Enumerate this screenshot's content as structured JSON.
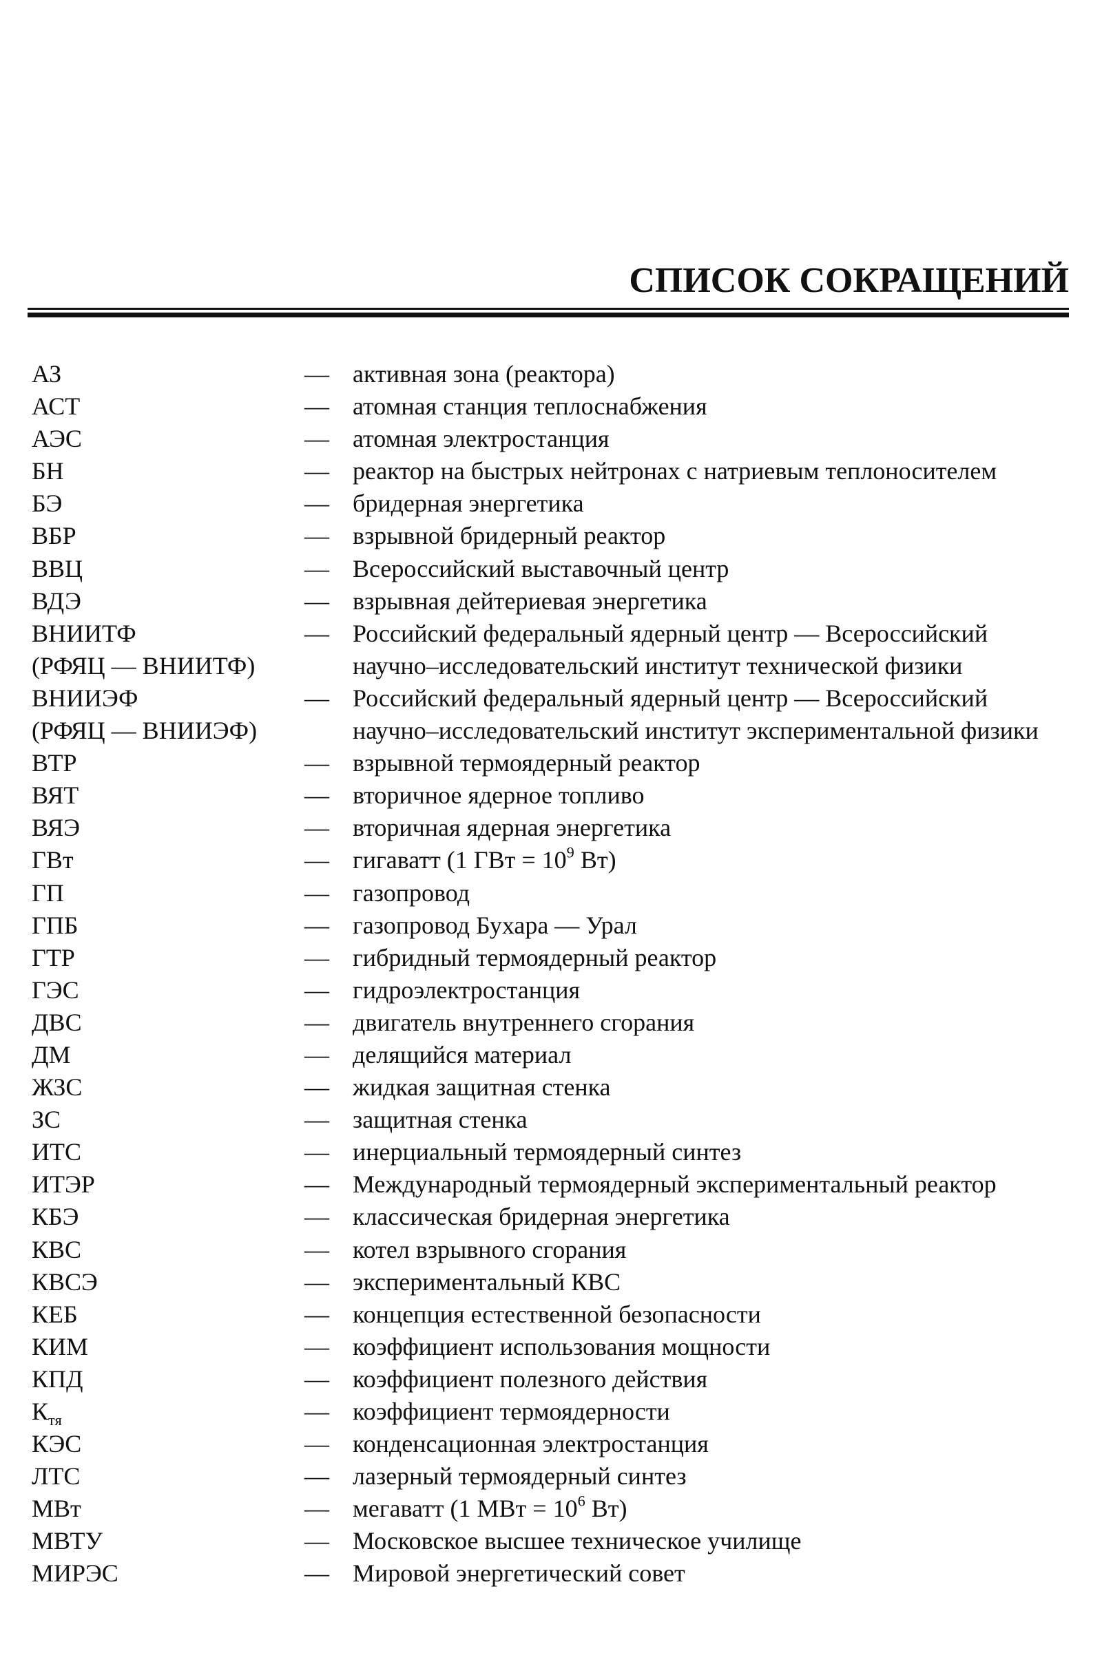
{
  "title": "СПИСОК СОКРАЩЕНИЙ",
  "dash": "—",
  "entries": [
    {
      "abbr": "АЗ",
      "desc": "активная зона (реактора)"
    },
    {
      "abbr": "АСТ",
      "desc": "атомная станция теплоснабжения"
    },
    {
      "abbr": "АЭС",
      "desc": "атомная электростанция"
    },
    {
      "abbr": "БН",
      "desc": "реактор на быстрых нейтронах с натриевым теплоносителем"
    },
    {
      "abbr": "БЭ",
      "desc": "бридерная энергетика"
    },
    {
      "abbr": "ВБР",
      "desc": "взрывной бридерный реактор"
    },
    {
      "abbr": "ВВЦ",
      "desc": "Всероссийский выставочный центр"
    },
    {
      "abbr": "ВДЭ",
      "desc": "взрывная дейтериевая энергетика"
    },
    {
      "abbr": "ВНИИТФ\n(РФЯЦ — ВНИИТФ)",
      "desc": "Российский федеральный ядерный центр — Всероссийский научно–исследовательский институт технической физики"
    },
    {
      "abbr": "ВНИИЭФ\n(РФЯЦ — ВНИИЭФ)",
      "desc": "Российский федеральный ядерный центр — Всероссийский научно–исследовательский институт экспериментальной физики"
    },
    {
      "abbr": "ВТР",
      "desc": "взрывной термоядерный реактор"
    },
    {
      "abbr": "ВЯТ",
      "desc": "вторичное ядерное топливо"
    },
    {
      "abbr": "ВЯЭ",
      "desc": "вторичная ядерная энергетика"
    },
    {
      "abbr": "ГВт",
      "desc": "гигаватт (1 ГВт = 10",
      "desc_sup": "9",
      "desc_tail": " Вт)"
    },
    {
      "abbr": "ГП",
      "desc": "газопровод"
    },
    {
      "abbr": "ГПБ",
      "desc": "газопровод Бухара — Урал"
    },
    {
      "abbr": "ГТР",
      "desc": "гибридный термоядерный реактор"
    },
    {
      "abbr": "ГЭС",
      "desc": "гидроэлектростанция"
    },
    {
      "abbr": "ДВС",
      "desc": "двигатель внутреннего сгорания"
    },
    {
      "abbr": "ДМ",
      "desc": "делящийся материал"
    },
    {
      "abbr": "ЖЗС",
      "desc": "жидкая защитная стенка"
    },
    {
      "abbr": "ЗС",
      "desc": "защитная стенка"
    },
    {
      "abbr": "ИТС",
      "desc": "инерциальный термоядерный синтез"
    },
    {
      "abbr": "ИТЭР",
      "desc": "Международный термоядерный экспериментальный реактор"
    },
    {
      "abbr": "КБЭ",
      "desc": "классическая бридерная энергетика"
    },
    {
      "abbr": "КВС",
      "desc": "котел взрывного сгорания"
    },
    {
      "abbr": "КВСЭ",
      "desc": "экспериментальный КВС"
    },
    {
      "abbr": "КЕБ",
      "desc": "концепция естественной безопасности"
    },
    {
      "abbr": "КИМ",
      "desc": "коэффициент использования мощности"
    },
    {
      "abbr": "КПД",
      "desc": "коэффициент полезного действия"
    },
    {
      "abbr": " К",
      "abbr_sub": "тя",
      "desc": "коэффициент термоядерности"
    },
    {
      "abbr": "КЭС",
      "desc": "конденсационная электростанция"
    },
    {
      "abbr": "ЛТС",
      "desc": "лазерный термоядерный синтез"
    },
    {
      "abbr": "МВт",
      "desc": "мегаватт (1 МВт = 10",
      "desc_sup": "6",
      "desc_tail": " Вт)"
    },
    {
      "abbr": "МВТУ",
      "desc": "Московское высшее техническое училище"
    },
    {
      "abbr": "МИРЭС",
      "desc": "Мировой энергетический совет"
    }
  ]
}
